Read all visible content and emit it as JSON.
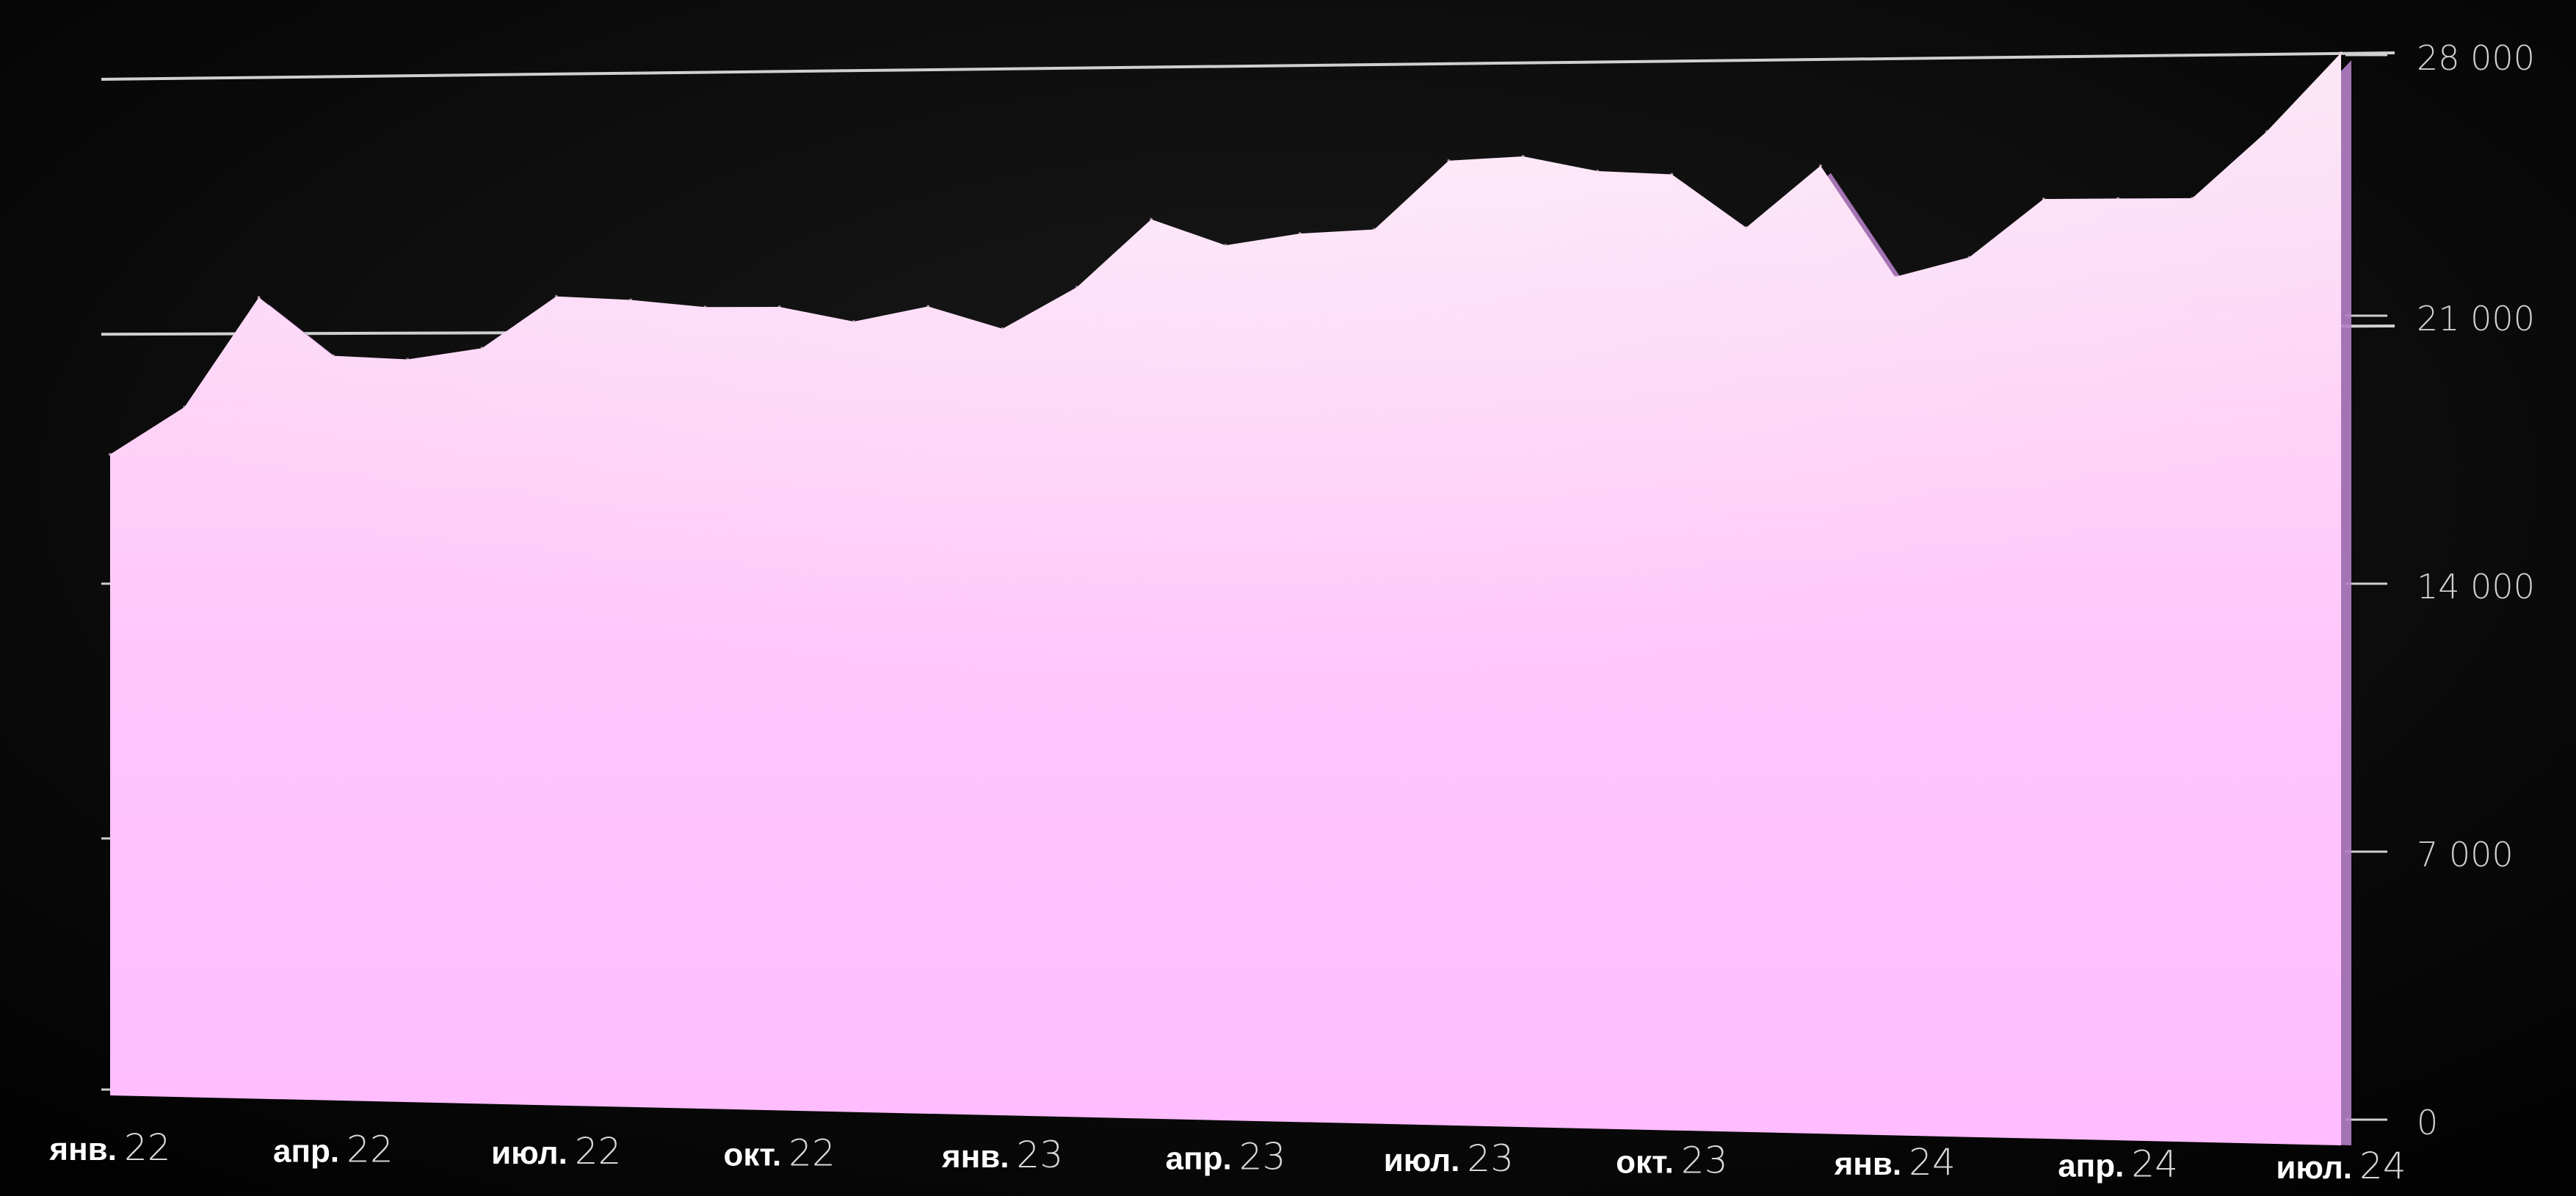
{
  "chart_data": {
    "type": "area",
    "title": "",
    "xlabel": "",
    "ylabel": "",
    "ylim": [
      0,
      28000
    ],
    "y_ticks": [
      {
        "value": 28000,
        "label": "28 000"
      },
      {
        "value": 21000,
        "label": "21 000"
      },
      {
        "value": 14000,
        "label": "14 000"
      },
      {
        "value": 7000,
        "label": "7 000"
      },
      {
        "value": 0,
        "label": "0"
      }
    ],
    "gridlines": [
      28000,
      21000
    ],
    "x_ticks": [
      {
        "index": 0,
        "month": "янв.",
        "year": "22"
      },
      {
        "index": 3,
        "month": "апр.",
        "year": "22"
      },
      {
        "index": 6,
        "month": "июл.",
        "year": "22"
      },
      {
        "index": 9,
        "month": "окт.",
        "year": "22"
      },
      {
        "index": 12,
        "month": "янв.",
        "year": "23"
      },
      {
        "index": 15,
        "month": "апр.",
        "year": "23"
      },
      {
        "index": 18,
        "month": "июл.",
        "year": "23"
      },
      {
        "index": 21,
        "month": "окт.",
        "year": "23"
      },
      {
        "index": 24,
        "month": "янв.",
        "year": "24"
      },
      {
        "index": 27,
        "month": "апр.",
        "year": "24"
      },
      {
        "index": 30,
        "month": "июл.",
        "year": "24"
      }
    ],
    "series": [
      {
        "values": [
          17600,
          18900,
          21900,
          20300,
          20200,
          20500,
          21900,
          21800,
          21600,
          21600,
          21200,
          21600,
          21000,
          22100,
          23900,
          23200,
          23500,
          23600,
          25400,
          25500,
          25100,
          25000,
          23600,
          25200,
          22300,
          22800,
          24300,
          24300,
          24300,
          26000,
          28000
        ]
      }
    ],
    "colors": {
      "background": "#060606",
      "area_top": "#fbe6f4",
      "area_bottom": "#ffbcff",
      "shadow": "#b57fc7",
      "gridline": "#d0d0d0"
    }
  }
}
